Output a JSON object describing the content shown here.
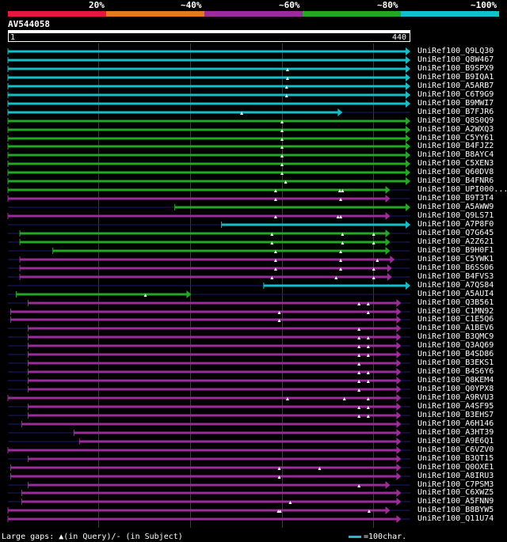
{
  "scale": {
    "labels": [
      "20%",
      "~40%",
      "~60%",
      "~80%",
      "~100%"
    ],
    "colors": {
      "red": "#e8163c",
      "orange": "#e47a1a",
      "purple": "#9c2c9c",
      "green": "#22a822",
      "cyan": "#11c0c8"
    }
  },
  "query": {
    "name": "AV544058",
    "start_label": "1",
    "end_label": "440",
    "length": 440
  },
  "hits": [
    {
      "label": "UniRef100_Q9LQ30",
      "color": "cyan",
      "start": 1,
      "end": 440,
      "gaps": []
    },
    {
      "label": "UniRef100_Q8W467",
      "color": "cyan",
      "start": 1,
      "end": 440,
      "gaps": []
    },
    {
      "label": "UniRef100_B9SPX9",
      "color": "cyan",
      "start": 1,
      "end": 440,
      "gaps": [
        306
      ]
    },
    {
      "label": "UniRef100_B9IQA1",
      "color": "cyan",
      "start": 1,
      "end": 440,
      "gaps": [
        306
      ]
    },
    {
      "label": "UniRef100_A5ARB7",
      "color": "cyan",
      "start": 1,
      "end": 440,
      "gaps": [
        305
      ]
    },
    {
      "label": "UniRef100_C6T9G9",
      "color": "cyan",
      "start": 1,
      "end": 440,
      "gaps": [
        305
      ]
    },
    {
      "label": "UniRef100_B9MWI7",
      "color": "cyan",
      "start": 1,
      "end": 440,
      "gaps": []
    },
    {
      "label": "UniRef100_B7FJR6",
      "color": "cyan",
      "start": 1,
      "end": 366,
      "gaps": [
        256
      ]
    },
    {
      "label": "UniRef100_Q8S0Q9",
      "color": "green",
      "start": 1,
      "end": 440,
      "gaps": [
        300
      ]
    },
    {
      "label": "UniRef100_A2WXQ3",
      "color": "green",
      "start": 1,
      "end": 440,
      "gaps": [
        300
      ]
    },
    {
      "label": "UniRef100_C5YY61",
      "color": "green",
      "start": 1,
      "end": 440,
      "gaps": [
        300
      ]
    },
    {
      "label": "UniRef100_B4FJZ2",
      "color": "green",
      "start": 1,
      "end": 440,
      "gaps": [
        300
      ]
    },
    {
      "label": "UniRef100_B8AYC4",
      "color": "green",
      "start": 1,
      "end": 440,
      "gaps": [
        300
      ]
    },
    {
      "label": "UniRef100_C5XEN3",
      "color": "green",
      "start": 1,
      "end": 440,
      "gaps": [
        300
      ]
    },
    {
      "label": "UniRef100_Q60DV8",
      "color": "green",
      "start": 1,
      "end": 440,
      "gaps": [
        300
      ]
    },
    {
      "label": "UniRef100_B4FNR6",
      "color": "green",
      "start": 1,
      "end": 440,
      "gaps": [
        304
      ]
    },
    {
      "label": "UniRef100_UPI000...",
      "color": "green",
      "start": 1,
      "end": 418,
      "gaps": [
        293,
        363,
        366
      ]
    },
    {
      "label": "UniRef100_B9T3T4",
      "color": "purple",
      "start": 1,
      "end": 418,
      "gaps": [
        293,
        364
      ]
    },
    {
      "label": "UniRef100_A5AWW9",
      "color": "green",
      "start": 183,
      "end": 440,
      "gaps": []
    },
    {
      "label": "UniRef100_Q9LS71",
      "color": "purple",
      "start": 1,
      "end": 418,
      "gaps": [
        293,
        361,
        364
      ]
    },
    {
      "label": "UniRef100_A7P8F0",
      "color": "cyan",
      "start": 234,
      "end": 440,
      "gaps": []
    },
    {
      "label": "UniRef100_Q7G645",
      "color": "green",
      "start": 14,
      "end": 418,
      "gaps": [
        289,
        366,
        400
      ]
    },
    {
      "label": "UniRef100_A2Z621",
      "color": "green",
      "start": 14,
      "end": 418,
      "gaps": [
        289,
        366,
        400
      ]
    },
    {
      "label": "UniRef100_B9H0F1",
      "color": "green",
      "start": 50,
      "end": 418,
      "gaps": [
        293,
        364
      ]
    },
    {
      "label": "UniRef100_C5YWK1",
      "color": "purple",
      "start": 14,
      "end": 423,
      "gaps": [
        293,
        364,
        404
      ]
    },
    {
      "label": "UniRef100_B6SS06",
      "color": "purple",
      "start": 14,
      "end": 420,
      "gaps": [
        293,
        364,
        400
      ]
    },
    {
      "label": "UniRef100_B4FVS3",
      "color": "purple",
      "start": 14,
      "end": 420,
      "gaps": [
        289,
        359,
        400
      ]
    },
    {
      "label": "UniRef100_A7QS84",
      "color": "cyan",
      "start": 280,
      "end": 440,
      "gaps": []
    },
    {
      "label": "UniRef100_A5AUI4",
      "color": "green",
      "start": 10,
      "end": 201,
      "gaps": [
        151
      ]
    },
    {
      "label": "UniRef100_Q3B561",
      "color": "purple",
      "start": 23,
      "end": 430,
      "gaps": [
        384,
        394
      ]
    },
    {
      "label": "UniRef100_C1MN92",
      "color": "purple",
      "start": 4,
      "end": 430,
      "gaps": [
        297,
        394
      ]
    },
    {
      "label": "UniRef100_C1E5Q6",
      "color": "purple",
      "start": 4,
      "end": 430,
      "gaps": [
        297
      ]
    },
    {
      "label": "UniRef100_A1BEV6",
      "color": "purple",
      "start": 23,
      "end": 430,
      "gaps": [
        384
      ]
    },
    {
      "label": "UniRef100_B3QMC9",
      "color": "purple",
      "start": 23,
      "end": 430,
      "gaps": [
        384,
        394
      ]
    },
    {
      "label": "UniRef100_Q3AQ69",
      "color": "purple",
      "start": 23,
      "end": 430,
      "gaps": [
        384,
        394
      ]
    },
    {
      "label": "UniRef100_B4SD86",
      "color": "purple",
      "start": 23,
      "end": 430,
      "gaps": [
        384,
        394
      ]
    },
    {
      "label": "UniRef100_B3EKS1",
      "color": "purple",
      "start": 23,
      "end": 430,
      "gaps": [
        384
      ]
    },
    {
      "label": "UniRef100_B4S6Y6",
      "color": "purple",
      "start": 23,
      "end": 430,
      "gaps": [
        384,
        394
      ]
    },
    {
      "label": "UniRef100_Q8KEM4",
      "color": "purple",
      "start": 23,
      "end": 430,
      "gaps": [
        384,
        394
      ]
    },
    {
      "label": "UniRef100_Q0YPX8",
      "color": "purple",
      "start": 23,
      "end": 430,
      "gaps": [
        384
      ]
    },
    {
      "label": "UniRef100_A9RVU3",
      "color": "purple",
      "start": 1,
      "end": 430,
      "gaps": [
        306,
        368,
        394
      ]
    },
    {
      "label": "UniRef100_A4SF95",
      "color": "purple",
      "start": 23,
      "end": 430,
      "gaps": [
        384,
        394
      ]
    },
    {
      "label": "UniRef100_B3EHS7",
      "color": "purple",
      "start": 23,
      "end": 430,
      "gaps": [
        384,
        394
      ]
    },
    {
      "label": "UniRef100_A6H146",
      "color": "purple",
      "start": 16,
      "end": 430,
      "gaps": []
    },
    {
      "label": "UniRef100_A3HT39",
      "color": "purple",
      "start": 73,
      "end": 430,
      "gaps": []
    },
    {
      "label": "UniRef100_A9E6Q1",
      "color": "purple",
      "start": 79,
      "end": 430,
      "gaps": []
    },
    {
      "label": "UniRef100_C6VZV0",
      "color": "purple",
      "start": 1,
      "end": 430,
      "gaps": []
    },
    {
      "label": "UniRef100_B3QT15",
      "color": "purple",
      "start": 23,
      "end": 430,
      "gaps": []
    },
    {
      "label": "UniRef100_Q0OXE1",
      "color": "purple",
      "start": 4,
      "end": 430,
      "gaps": [
        297,
        341
      ]
    },
    {
      "label": "UniRef100_A8IRU3",
      "color": "purple",
      "start": 4,
      "end": 430,
      "gaps": [
        297
      ]
    },
    {
      "label": "UniRef100_C7PSM3",
      "color": "purple",
      "start": 23,
      "end": 418,
      "gaps": [
        384
      ]
    },
    {
      "label": "UniRef100_C6XWZ5",
      "color": "purple",
      "start": 16,
      "end": 430,
      "gaps": []
    },
    {
      "label": "UniRef100_A5FNN9",
      "color": "purple",
      "start": 16,
      "end": 430,
      "gaps": [
        309
      ]
    },
    {
      "label": "UniRef100_B8BYW5",
      "color": "purple",
      "start": 1,
      "end": 418,
      "gaps": [
        296,
        298,
        395
      ]
    },
    {
      "label": "UniRef100_Q11U74",
      "color": "purple",
      "start": 1,
      "end": 430,
      "gaps": []
    }
  ],
  "footer": {
    "gaps_legend": "Large gaps: ▲(in Query)/- (in Subject)",
    "scale_legend": "=100char."
  }
}
